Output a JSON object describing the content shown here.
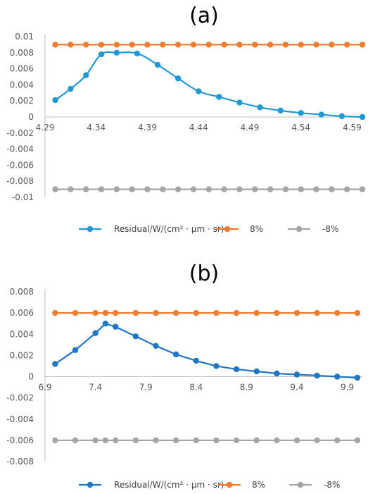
{
  "colors": {
    "residual_a": "#1F9AD6",
    "residual_b": "#1F77C4",
    "plus": "#ED7D31",
    "minus": "#A5A5A5",
    "axis": "#BFBFBF",
    "tick_text": "#595959"
  },
  "chart_data": [
    {
      "type": "line",
      "title": "(a)",
      "x_tick_labels": [
        "4.29",
        "4.34",
        "4.39",
        "4.44",
        "4.49",
        "4.54",
        "4.59"
      ],
      "x_ticks": [
        4.29,
        4.34,
        4.39,
        4.44,
        4.49,
        4.54,
        4.59
      ],
      "xlim": [
        4.29,
        4.6
      ],
      "ylim": [
        -0.01,
        0.01
      ],
      "y_ticks": [
        0.01,
        0.008,
        0.006,
        0.004,
        0.002,
        0,
        -0.002,
        -0.004,
        -0.006,
        -0.008,
        -0.01
      ],
      "y_tick_labels": [
        "0.01",
        "0.008",
        "0.006",
        "0.004",
        "0.002",
        "0",
        "-0.002",
        "-0.004",
        "-0.006",
        "-0.008",
        "-0.01"
      ],
      "legend_position": "bottom",
      "x": [
        4.3,
        4.315,
        4.33,
        4.345,
        4.36,
        4.375,
        4.39,
        4.405,
        4.42,
        4.435,
        4.45,
        4.465,
        4.48,
        4.495,
        4.51,
        4.525,
        4.54,
        4.555,
        4.57,
        4.585,
        4.6
      ],
      "series": [
        {
          "name": "Residual/W/(cm² · μm · sr)",
          "smooth": true,
          "x": [
            4.3,
            4.315,
            4.33,
            4.345,
            4.36,
            4.38,
            4.4,
            4.42,
            4.44,
            4.46,
            4.48,
            4.5,
            4.52,
            4.54,
            4.56,
            4.58,
            4.6
          ],
          "values": [
            0.0021,
            0.0035,
            0.0052,
            0.0078,
            0.008,
            0.0079,
            0.0065,
            0.0048,
            0.0032,
            0.0025,
            0.0018,
            0.0012,
            0.0008,
            0.0005,
            0.0003,
            0.0001,
            0.0
          ]
        },
        {
          "name": "8%",
          "values": [
            0.009,
            0.009,
            0.009,
            0.009,
            0.009,
            0.009,
            0.009,
            0.009,
            0.009,
            0.009,
            0.009,
            0.009,
            0.009,
            0.009,
            0.009,
            0.009,
            0.009,
            0.009,
            0.009,
            0.009,
            0.009
          ]
        },
        {
          "name": "-8%",
          "values": [
            -0.009,
            -0.009,
            -0.009,
            -0.009,
            -0.009,
            -0.009,
            -0.009,
            -0.009,
            -0.009,
            -0.009,
            -0.009,
            -0.009,
            -0.009,
            -0.009,
            -0.009,
            -0.009,
            -0.009,
            -0.009,
            -0.009,
            -0.009,
            -0.009
          ]
        }
      ]
    },
    {
      "type": "line",
      "title": "(b)",
      "x_tick_labels": [
        "6.9",
        "7.4",
        "7.9",
        "8.4",
        "8.9",
        "9.4",
        "9.9"
      ],
      "x_ticks": [
        6.9,
        7.4,
        7.9,
        8.4,
        8.9,
        9.4,
        9.9
      ],
      "xlim": [
        6.9,
        10.05
      ],
      "ylim": [
        -0.008,
        0.008
      ],
      "y_ticks": [
        0.008,
        0.006,
        0.004,
        0.002,
        0,
        -0.002,
        -0.004,
        -0.006,
        -0.008
      ],
      "y_tick_labels": [
        "0.008",
        "0.006",
        "0.004",
        "0.002",
        "0",
        "-0.002",
        "-0.004",
        "-0.006",
        "-0.008"
      ],
      "legend_position": "bottom",
      "x": [
        7.0,
        7.2,
        7.4,
        7.5,
        7.6,
        7.8,
        8.0,
        8.2,
        8.4,
        8.6,
        8.8,
        9.0,
        9.2,
        9.4,
        9.6,
        9.8,
        10.0
      ],
      "series": [
        {
          "name": "Residual/W/(cm² · μm · sr)",
          "smooth": false,
          "x": [
            7.0,
            7.2,
            7.4,
            7.5,
            7.6,
            7.8,
            8.0,
            8.2,
            8.4,
            8.6,
            8.8,
            9.0,
            9.2,
            9.4,
            9.6,
            9.8,
            10.0
          ],
          "values": [
            0.0012,
            0.0025,
            0.0041,
            0.005,
            0.0047,
            0.0038,
            0.0029,
            0.0021,
            0.0015,
            0.001,
            0.0007,
            0.0005,
            0.0003,
            0.0002,
            0.0001,
            0.0,
            -0.0001
          ]
        },
        {
          "name": "8%",
          "values": [
            0.006,
            0.006,
            0.006,
            0.006,
            0.006,
            0.006,
            0.006,
            0.006,
            0.006,
            0.006,
            0.006,
            0.006,
            0.006,
            0.006,
            0.006,
            0.006,
            0.006
          ]
        },
        {
          "name": "-8%",
          "values": [
            -0.006,
            -0.006,
            -0.006,
            -0.006,
            -0.006,
            -0.006,
            -0.006,
            -0.006,
            -0.006,
            -0.006,
            -0.006,
            -0.006,
            -0.006,
            -0.006,
            -0.006,
            -0.006,
            -0.006
          ]
        }
      ]
    }
  ]
}
